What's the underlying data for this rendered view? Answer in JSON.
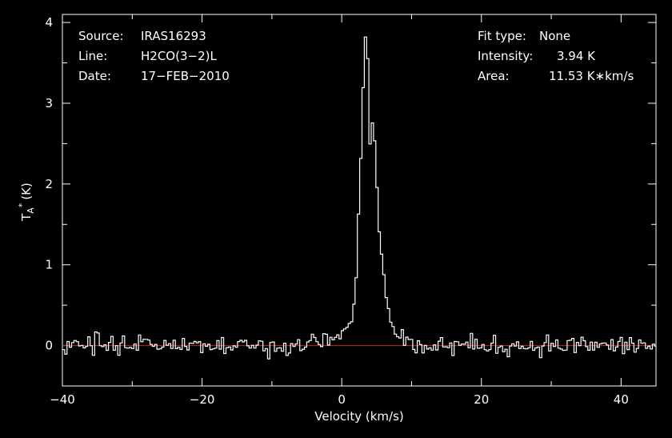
{
  "chart_data": {
    "type": "line",
    "title": "",
    "xlabel": "Velocity (km/s)",
    "ylabel_main": "T",
    "ylabel_sub": "A",
    "ylabel_sup": "*",
    "ylabel_unit": "(K)",
    "xlim": [
      -40,
      45
    ],
    "ylim": [
      -0.5,
      4.1
    ],
    "grid": false,
    "x_ticks": [
      -40,
      -20,
      0,
      20,
      40
    ],
    "x_tick_labels": [
      "−40",
      "−20",
      "0",
      "20",
      "40"
    ],
    "y_ticks": [
      0,
      1,
      2,
      3,
      4
    ],
    "y_tick_labels": [
      "0",
      "1",
      "2",
      "3",
      "4"
    ],
    "baseline": 0,
    "channel_width_kmps": 0.33,
    "colors": {
      "spectrum": "#ffffff",
      "baseline": "#cc2222",
      "frame": "#ffffff",
      "background": "#000000"
    },
    "series": [
      {
        "x": [
          -40.0,
          -35.0,
          -30.0,
          -25.0,
          -20.0,
          -15.0,
          -10.0,
          -6.0,
          -3.0,
          -1.0,
          0.0,
          0.5,
          1.0,
          1.5,
          2.0,
          2.3,
          2.6,
          2.9,
          3.2,
          3.5,
          3.8,
          4.0,
          4.3,
          4.6,
          4.9,
          5.2,
          5.5,
          5.8,
          6.2,
          6.6,
          7.0,
          7.5,
          8.0,
          9.0,
          10.0,
          12.0,
          15.0,
          20.0,
          25.0,
          30.0,
          35.0,
          40.0,
          45.0
        ],
        "y": [
          0.0,
          0.0,
          0.0,
          0.0,
          0.0,
          0.0,
          0.0,
          0.02,
          0.05,
          0.1,
          0.18,
          0.22,
          0.28,
          0.38,
          0.75,
          1.3,
          2.05,
          2.9,
          3.55,
          3.92,
          3.4,
          2.45,
          2.75,
          2.85,
          2.3,
          1.7,
          1.3,
          0.98,
          0.72,
          0.55,
          0.4,
          0.25,
          0.14,
          0.06,
          0.02,
          0.0,
          0.0,
          0.0,
          0.0,
          0.0,
          0.0,
          0.0,
          0.0
        ]
      }
    ]
  },
  "info": {
    "source_label": "Source:",
    "source_value": "IRAS16293",
    "line_label": "Line:",
    "line_value": "H2CO(3−2)L",
    "date_label": "Date:",
    "date_value": "17−FEB−2010",
    "fit_type_label": "Fit type:",
    "fit_type_value": "None",
    "intensity_label": "Intensity:",
    "intensity_value": "3.94 K",
    "area_label": "Area:",
    "area_value": "11.53 K∗km/s"
  }
}
